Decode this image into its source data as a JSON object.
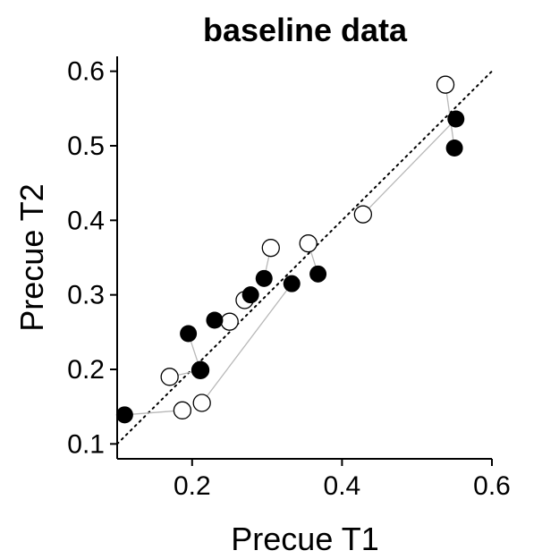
{
  "chart_data": {
    "type": "scatter",
    "title": "baseline data",
    "xlabel": "Precue T1",
    "ylabel": "Precue T2",
    "xlim": [
      0.1,
      0.6
    ],
    "ylim": [
      0.08,
      0.62
    ],
    "xticks": [
      {
        "value": 0.2,
        "label": "0.2"
      },
      {
        "value": 0.4,
        "label": "0.4"
      },
      {
        "value": 0.6,
        "label": "0.6"
      }
    ],
    "yticks": [
      {
        "value": 0.1,
        "label": "0.1"
      },
      {
        "value": 0.2,
        "label": "0.2"
      },
      {
        "value": 0.3,
        "label": "0.3"
      },
      {
        "value": 0.4,
        "label": "0.4"
      },
      {
        "value": 0.5,
        "label": "0.5"
      },
      {
        "value": 0.6,
        "label": "0.6"
      }
    ],
    "grid": false,
    "reference_line": {
      "style": "dotted",
      "from": [
        0.1,
        0.1
      ],
      "to": [
        0.6,
        0.6
      ]
    },
    "pairs": [
      {
        "filled": [
          0.11,
          0.139
        ],
        "open": [
          0.187,
          0.145
        ]
      },
      {
        "filled": [
          0.195,
          0.248
        ],
        "open": [
          0.211,
          0.199
        ]
      },
      {
        "filled": [
          0.211,
          0.199
        ],
        "open": [
          0.17,
          0.19
        ]
      },
      {
        "filled": [
          0.23,
          0.266
        ],
        "open": [
          0.25,
          0.264
        ]
      },
      {
        "filled": [
          0.278,
          0.3
        ],
        "open": [
          0.27,
          0.293
        ]
      },
      {
        "filled": [
          0.296,
          0.322
        ],
        "open": [
          0.305,
          0.363
        ]
      },
      {
        "filled": [
          0.333,
          0.315
        ],
        "open": [
          0.213,
          0.155
        ]
      },
      {
        "filled": [
          0.368,
          0.328
        ],
        "open": [
          0.355,
          0.369
        ]
      },
      {
        "filled": [
          0.552,
          0.536
        ],
        "open": [
          0.428,
          0.408
        ]
      },
      {
        "filled": [
          0.55,
          0.497
        ],
        "open": [
          0.538,
          0.582
        ]
      }
    ],
    "colors": {
      "filled": "#000000",
      "open_fill": "#ffffff",
      "open_stroke": "#000000",
      "connector": "#b8b8b8",
      "axis": "#000000"
    }
  }
}
